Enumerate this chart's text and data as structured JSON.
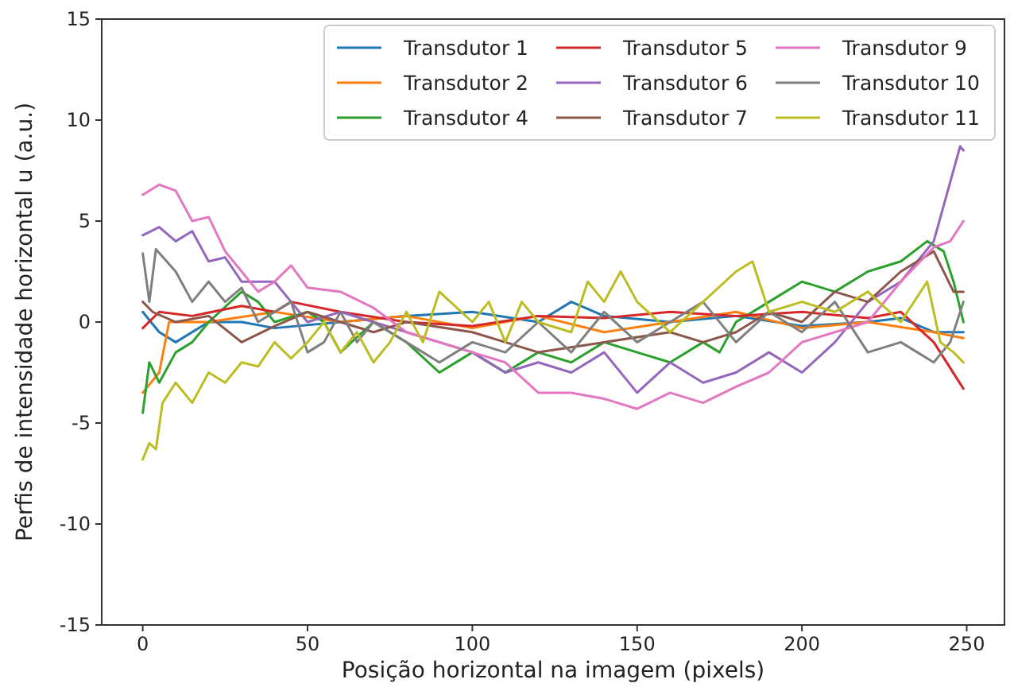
{
  "chart_data": {
    "type": "line",
    "xlabel": "Posição horizontal na imagem (pixels)",
    "ylabel": "Perfis de intensidade horizontal u (a.u.)",
    "xlim": [
      -12.45,
      261.45
    ],
    "ylim": [
      -15,
      15
    ],
    "xticks": [
      0,
      50,
      100,
      150,
      200,
      250
    ],
    "yticks": [
      -15,
      -10,
      -5,
      0,
      5,
      10,
      15
    ],
    "grid": false,
    "legend": "top right",
    "line_style": "solid",
    "marker": "none",
    "series": [
      {
        "name": "Transdutor 1",
        "color": "#1f77b4",
        "x": [
          0,
          5,
          10,
          20,
          30,
          40,
          60,
          80,
          100,
          120,
          130,
          140,
          160,
          180,
          200,
          220,
          230,
          240,
          249
        ],
        "values": [
          0.5,
          -0.5,
          -1,
          0,
          0,
          -0.3,
          0,
          0.3,
          0.5,
          0,
          1,
          0.3,
          0,
          0.3,
          -0.2,
          0,
          0.2,
          -0.5,
          -0.5
        ]
      },
      {
        "name": "Transdutor 2",
        "color": "#ff7f0e",
        "x": [
          0,
          5,
          8,
          20,
          40,
          60,
          80,
          100,
          120,
          140,
          160,
          180,
          200,
          220,
          240,
          249
        ],
        "values": [
          -3.5,
          -2.5,
          0,
          0,
          0.5,
          0,
          0.3,
          -0.3,
          0.3,
          -0.5,
          0,
          0.5,
          -0.3,
          0,
          -0.5,
          -0.8
        ]
      },
      {
        "name": "Transdutor 4",
        "color": "#2ca02c",
        "x": [
          0,
          2,
          5,
          10,
          15,
          20,
          30,
          35,
          40,
          50,
          55,
          60,
          70,
          80,
          90,
          100,
          110,
          120,
          130,
          140,
          150,
          160,
          170,
          175,
          180,
          190,
          200,
          210,
          220,
          230,
          238,
          243,
          246,
          249
        ],
        "values": [
          -4.5,
          -2,
          -3,
          -1.5,
          -1,
          0,
          1.5,
          1,
          0,
          0.5,
          0,
          -1.5,
          0,
          -1,
          -2.5,
          -1.5,
          -2.5,
          -1.5,
          -2,
          -1,
          -1.5,
          -2,
          -1,
          -1.5,
          0,
          1,
          2,
          1.5,
          2.5,
          3,
          4,
          3.5,
          2,
          0
        ]
      },
      {
        "name": "Transdutor 5",
        "color": "#d62728",
        "x": [
          0,
          5,
          15,
          30,
          40,
          45,
          60,
          80,
          100,
          120,
          140,
          160,
          180,
          200,
          220,
          230,
          240,
          249
        ],
        "values": [
          -0.3,
          0.5,
          0.3,
          0.8,
          0.5,
          1,
          0.5,
          0,
          -0.2,
          0.3,
          0.2,
          0.5,
          0.3,
          0.5,
          0.2,
          0.5,
          -1,
          -3.3
        ]
      },
      {
        "name": "Transdutor 6",
        "color": "#9467bd",
        "x": [
          0,
          5,
          10,
          15,
          20,
          25,
          30,
          40,
          45,
          50,
          60,
          70,
          80,
          90,
          100,
          110,
          120,
          130,
          140,
          150,
          160,
          170,
          180,
          190,
          200,
          210,
          220,
          230,
          240,
          248,
          249
        ],
        "values": [
          4.3,
          4.7,
          4,
          4.5,
          3,
          3.2,
          2,
          2,
          1,
          0,
          0.5,
          0,
          -0.5,
          -1,
          -1.5,
          -2.5,
          -2,
          -2.5,
          -1.5,
          -3.5,
          -2,
          -3,
          -2.5,
          -1.5,
          -2.5,
          -1,
          1,
          2,
          4,
          8.7,
          8.5
        ]
      },
      {
        "name": "Transdutor 7",
        "color": "#8c564b",
        "x": [
          0,
          3,
          10,
          20,
          30,
          40,
          50,
          60,
          70,
          80,
          100,
          110,
          120,
          140,
          160,
          170,
          180,
          190,
          200,
          210,
          220,
          230,
          240,
          246,
          249
        ],
        "values": [
          1,
          0.5,
          0,
          0.3,
          -1,
          -0.2,
          0.5,
          0,
          -0.5,
          0,
          -0.5,
          -1,
          -1.5,
          -1,
          -0.5,
          -1,
          -0.5,
          0.5,
          0,
          1.5,
          1,
          2.5,
          3.5,
          1.5,
          1.5
        ]
      },
      {
        "name": "Transdutor 9",
        "color": "#e377c2",
        "x": [
          0,
          5,
          10,
          15,
          20,
          25,
          30,
          35,
          40,
          45,
          50,
          60,
          70,
          80,
          100,
          110,
          120,
          130,
          140,
          150,
          160,
          170,
          180,
          190,
          200,
          210,
          220,
          230,
          240,
          245,
          249
        ],
        "values": [
          6.3,
          6.8,
          6.5,
          5,
          5.2,
          3.5,
          2.5,
          1.5,
          2,
          2.8,
          1.7,
          1.5,
          0.7,
          -0.5,
          -1.5,
          -2,
          -3.5,
          -3.5,
          -3.8,
          -4.3,
          -3.5,
          -4,
          -3.2,
          -2.5,
          -1,
          -0.5,
          0,
          2,
          3.7,
          4,
          5
        ]
      },
      {
        "name": "Transdutor 10",
        "color": "#7f7f7f",
        "x": [
          0,
          2,
          4,
          10,
          15,
          20,
          25,
          30,
          35,
          45,
          50,
          55,
          60,
          65,
          70,
          80,
          90,
          100,
          110,
          120,
          130,
          140,
          150,
          160,
          170,
          180,
          190,
          200,
          210,
          220,
          230,
          240,
          245,
          249
        ],
        "values": [
          3.4,
          1,
          3.6,
          2.5,
          1,
          2,
          1,
          1.7,
          0,
          1,
          -1.5,
          -1,
          0.5,
          -1,
          0,
          -1,
          -2,
          -1,
          -1.5,
          0,
          -1.5,
          0.5,
          -1,
          0,
          1,
          -1,
          0.5,
          -0.5,
          1,
          -1.5,
          -1,
          -2,
          -1,
          1
        ]
      },
      {
        "name": "Transdutor 11",
        "color": "#bcbd22",
        "x": [
          0,
          2,
          4,
          6,
          10,
          15,
          20,
          25,
          30,
          35,
          40,
          45,
          50,
          55,
          60,
          65,
          70,
          75,
          80,
          85,
          90,
          100,
          105,
          110,
          115,
          120,
          130,
          135,
          140,
          145,
          150,
          160,
          170,
          180,
          185,
          190,
          200,
          210,
          220,
          230,
          238,
          242,
          246,
          249
        ],
        "values": [
          -6.8,
          -6,
          -6.3,
          -4,
          -3,
          -4,
          -2.5,
          -3,
          -2,
          -2.2,
          -1,
          -1.8,
          -1,
          0,
          -1.5,
          -0.5,
          -2,
          -1,
          0.5,
          -1,
          1.5,
          0,
          1,
          -1,
          1,
          0,
          -0.5,
          2,
          1,
          2.5,
          1,
          -0.5,
          1,
          2.5,
          3,
          0.5,
          1,
          0.5,
          1.5,
          0,
          2,
          -1,
          -1.5,
          -2
        ]
      }
    ]
  }
}
